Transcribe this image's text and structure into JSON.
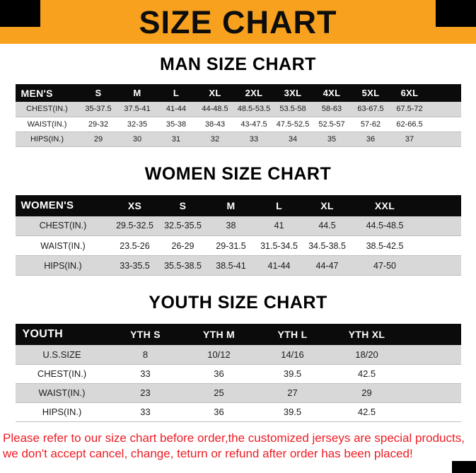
{
  "banner": {
    "title": "SIZE CHART"
  },
  "chart_data": [
    {
      "type": "table",
      "title": "MAN SIZE CHART",
      "columns": [
        "MEN'S",
        "S",
        "M",
        "L",
        "XL",
        "2XL",
        "3XL",
        "4XL",
        "5XL",
        "6XL"
      ],
      "rows": [
        [
          "CHEST(IN.)",
          "35-37.5",
          "37.5-41",
          "41-44",
          "44-48.5",
          "48.5-53.5",
          "53.5-58",
          "58-63",
          "63-67.5",
          "67.5-72"
        ],
        [
          "WAIST(IN.)",
          "29-32",
          "32-35",
          "35-38",
          "38-43",
          "43-47.5",
          "47.5-52.5",
          "52.5-57",
          "57-62",
          "62-66.5"
        ],
        [
          "HIPS(IN.)",
          "29",
          "30",
          "31",
          "32",
          "33",
          "34",
          "35",
          "36",
          "37"
        ]
      ]
    },
    {
      "type": "table",
      "title": "WOMEN SIZE CHART",
      "columns": [
        "WOMEN'S",
        "XS",
        "S",
        "M",
        "L",
        "XL",
        "XXL"
      ],
      "rows": [
        [
          "CHEST(IN.)",
          "29.5-32.5",
          "32.5-35.5",
          "38",
          "41",
          "44.5",
          "44.5-48.5"
        ],
        [
          "WAIST(IN.)",
          "23.5-26",
          "26-29",
          "29-31.5",
          "31.5-34.5",
          "34.5-38.5",
          "38.5-42.5"
        ],
        [
          "HIPS(IN.)",
          "33-35.5",
          "35.5-38.5",
          "38.5-41",
          "41-44",
          "44-47",
          "47-50"
        ]
      ]
    },
    {
      "type": "table",
      "title": "YOUTH SIZE CHART",
      "columns": [
        "YOUTH",
        "YTH S",
        "YTH M",
        "YTH L",
        "YTH XL"
      ],
      "rows": [
        [
          "U.S.SIZE",
          "8",
          "10/12",
          "14/16",
          "18/20"
        ],
        [
          "CHEST(IN.)",
          "33",
          "36",
          "39.5",
          "42.5"
        ],
        [
          "WAIST(IN.)",
          "23",
          "25",
          "27",
          "29"
        ],
        [
          "HIPS(IN.)",
          "33",
          "36",
          "39.5",
          "42.5"
        ]
      ]
    }
  ],
  "footer": {
    "line1": "Please refer to our size chart before order,the customized jerseys are special products,",
    "line2": "we don't accept cancel, change, teturn or refund after order has been placed!"
  },
  "colors": {
    "banner_orange": "#f7a11e",
    "table_header_black": "#0b0b0b",
    "row_gray": "#d8d8d8",
    "notice_red": "#ed1c24"
  }
}
